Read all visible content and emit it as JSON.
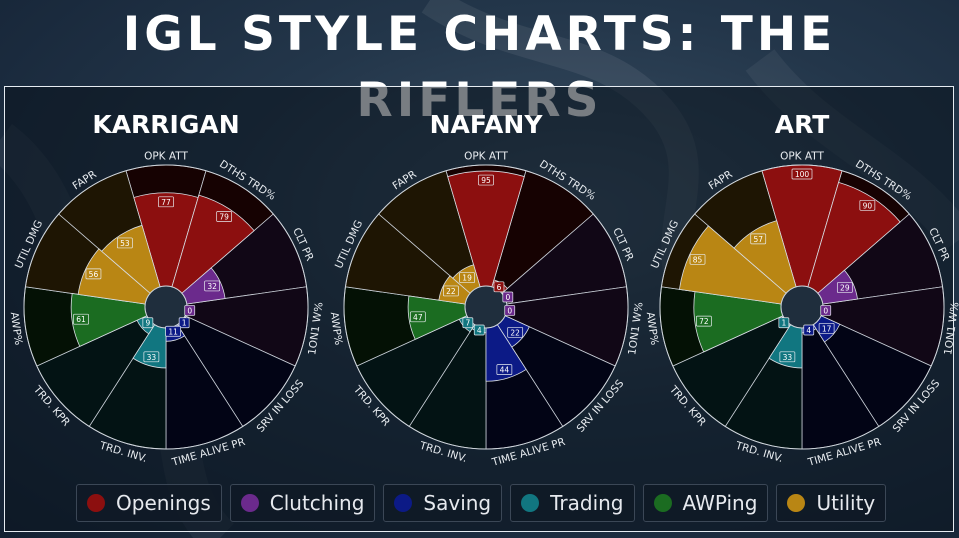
{
  "title": "IGL STYLE CHARTS: THE RIFLERS",
  "colors": {
    "Openings": "#8c0f0f",
    "Clutching": "#6b2a8c",
    "Saving": "#0c1a86",
    "Trading": "#117680",
    "AWPing": "#1b6c21",
    "Utility": "#b98614"
  },
  "legend": [
    {
      "label": "Openings",
      "color": "#8c0f0f"
    },
    {
      "label": "Clutching",
      "color": "#6b2a8c"
    },
    {
      "label": "Saving",
      "color": "#0c1a86"
    },
    {
      "label": "Trading",
      "color": "#117680"
    },
    {
      "label": "AWPing",
      "color": "#1b6c21"
    },
    {
      "label": "Utility",
      "color": "#b98614"
    }
  ],
  "chart_data": [
    {
      "type": "polar-area",
      "title": "KARRIGAN",
      "rlim": [
        0,
        100
      ],
      "categories": [
        "OPK ATT",
        "DTHS TRD%",
        "CLT PR",
        "1ON1 W%",
        "SRV IN LOSS",
        "TIME ALIVE PR",
        "TRD. INV.",
        "TRD. KPR",
        "AWP%",
        "UTIL DMG",
        "FAPR"
      ],
      "groups": [
        "Openings",
        "Openings",
        "Clutching",
        "Clutching",
        "Saving",
        "Saving",
        "Trading",
        "Trading",
        "AWPing",
        "Utility",
        "Utility"
      ],
      "values": [
        77,
        79,
        32,
        0,
        1,
        11,
        33,
        9,
        61,
        56,
        53
      ]
    },
    {
      "type": "polar-area",
      "title": "NAFANY",
      "rlim": [
        0,
        100
      ],
      "categories": [
        "OPK ATT",
        "DTHS TRD%",
        "CLT PR",
        "1ON1 W%",
        "SRV IN LOSS",
        "TIME ALIVE PR",
        "TRD. INV.",
        "TRD. KPR",
        "AWP%",
        "UTIL DMG",
        "FAPR"
      ],
      "groups": [
        "Openings",
        "Openings",
        "Clutching",
        "Clutching",
        "Saving",
        "Saving",
        "Trading",
        "Trading",
        "AWPing",
        "Utility",
        "Utility"
      ],
      "values": [
        95,
        6,
        0,
        0,
        22,
        44,
        4,
        7,
        47,
        22,
        19
      ]
    },
    {
      "type": "polar-area",
      "title": "ART",
      "rlim": [
        0,
        100
      ],
      "categories": [
        "OPK ATT",
        "DTHS TRD%",
        "CLT PR",
        "1ON1 W%",
        "SRV IN LOSS",
        "TIME ALIVE PR",
        "TRD. INV.",
        "TRD. KPR",
        "AWP%",
        "UTIL DMG",
        "FAPR"
      ],
      "groups": [
        "Openings",
        "Openings",
        "Clutching",
        "Clutching",
        "Saving",
        "Saving",
        "Trading",
        "Trading",
        "AWPing",
        "Utility",
        "Utility"
      ],
      "values": [
        100,
        90,
        29,
        0,
        17,
        4,
        33,
        1,
        72,
        85,
        57
      ]
    }
  ]
}
